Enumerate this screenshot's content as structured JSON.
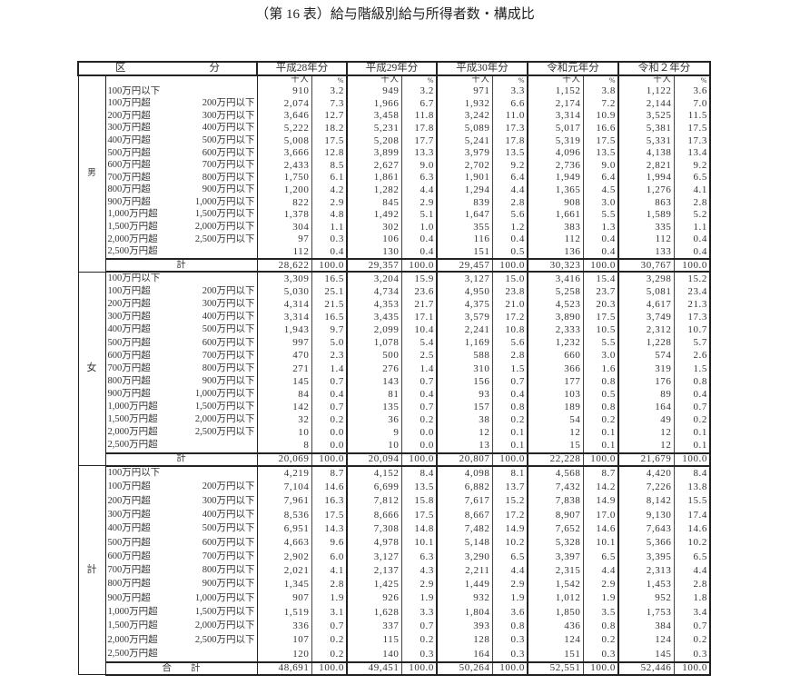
{
  "title": "（第 16 表）給与階級別給与所得者数・構成比",
  "header": {
    "category": "区　　　　　　　　分",
    "years": [
      "平成28年分",
      "平成29年分",
      "平成30年分",
      "令和元年分",
      "令和２年分"
    ],
    "unit_count": "千人",
    "unit_pct": "%"
  },
  "categories": [
    {
      "from": "100万円以下",
      "to": ""
    },
    {
      "from": "100万円超",
      "to": "200万円以下"
    },
    {
      "from": "200万円超",
      "to": "300万円以下"
    },
    {
      "from": "300万円超",
      "to": "400万円以下"
    },
    {
      "from": "400万円超",
      "to": "500万円以下"
    },
    {
      "from": "500万円超",
      "to": "600万円以下"
    },
    {
      "from": "600万円超",
      "to": "700万円以下"
    },
    {
      "from": "700万円超",
      "to": "800万円以下"
    },
    {
      "from": "800万円超",
      "to": "900万円以下"
    },
    {
      "from": "900万円超",
      "to": "1,000万円以下"
    },
    {
      "from": "1,000万円超",
      "to": "1,500万円以下"
    },
    {
      "from": "1,500万円超",
      "to": "2,000万円以下"
    },
    {
      "from": "2,000万円超",
      "to": "2,500万円以下"
    },
    {
      "from": "2,500万円超",
      "to": ""
    }
  ],
  "sections": [
    {
      "label": "男",
      "total_label": "計",
      "rows": [
        [
          [
            "910",
            "3.2"
          ],
          [
            "949",
            "3.2"
          ],
          [
            "971",
            "3.3"
          ],
          [
            "1,152",
            "3.8"
          ],
          [
            "1,122",
            "3.6"
          ]
        ],
        [
          [
            "2,074",
            "7.3"
          ],
          [
            "1,966",
            "6.7"
          ],
          [
            "1,932",
            "6.6"
          ],
          [
            "2,174",
            "7.2"
          ],
          [
            "2,144",
            "7.0"
          ]
        ],
        [
          [
            "3,646",
            "12.7"
          ],
          [
            "3,458",
            "11.8"
          ],
          [
            "3,242",
            "11.0"
          ],
          [
            "3,314",
            "10.9"
          ],
          [
            "3,525",
            "11.5"
          ]
        ],
        [
          [
            "5,222",
            "18.2"
          ],
          [
            "5,231",
            "17.8"
          ],
          [
            "5,089",
            "17.3"
          ],
          [
            "5,017",
            "16.6"
          ],
          [
            "5,381",
            "17.5"
          ]
        ],
        [
          [
            "5,008",
            "17.5"
          ],
          [
            "5,208",
            "17.7"
          ],
          [
            "5,241",
            "17.8"
          ],
          [
            "5,319",
            "17.5"
          ],
          [
            "5,331",
            "17.3"
          ]
        ],
        [
          [
            "3,666",
            "12.8"
          ],
          [
            "3,899",
            "13.3"
          ],
          [
            "3,979",
            "13.5"
          ],
          [
            "4,096",
            "13.5"
          ],
          [
            "4,138",
            "13.4"
          ]
        ],
        [
          [
            "2,433",
            "8.5"
          ],
          [
            "2,627",
            "9.0"
          ],
          [
            "2,702",
            "9.2"
          ],
          [
            "2,736",
            "9.0"
          ],
          [
            "2,821",
            "9.2"
          ]
        ],
        [
          [
            "1,750",
            "6.1"
          ],
          [
            "1,861",
            "6.3"
          ],
          [
            "1,901",
            "6.4"
          ],
          [
            "1,949",
            "6.4"
          ],
          [
            "1,994",
            "6.5"
          ]
        ],
        [
          [
            "1,200",
            "4.2"
          ],
          [
            "1,282",
            "4.4"
          ],
          [
            "1,294",
            "4.4"
          ],
          [
            "1,365",
            "4.5"
          ],
          [
            "1,276",
            "4.1"
          ]
        ],
        [
          [
            "822",
            "2.9"
          ],
          [
            "845",
            "2.9"
          ],
          [
            "839",
            "2.8"
          ],
          [
            "908",
            "3.0"
          ],
          [
            "863",
            "2.8"
          ]
        ],
        [
          [
            "1,378",
            "4.8"
          ],
          [
            "1,492",
            "5.1"
          ],
          [
            "1,647",
            "5.6"
          ],
          [
            "1,661",
            "5.5"
          ],
          [
            "1,589",
            "5.2"
          ]
        ],
        [
          [
            "304",
            "1.1"
          ],
          [
            "302",
            "1.0"
          ],
          [
            "355",
            "1.2"
          ],
          [
            "383",
            "1.3"
          ],
          [
            "335",
            "1.1"
          ]
        ],
        [
          [
            "97",
            "0.3"
          ],
          [
            "106",
            "0.4"
          ],
          [
            "116",
            "0.4"
          ],
          [
            "112",
            "0.4"
          ],
          [
            "112",
            "0.4"
          ]
        ],
        [
          [
            "112",
            "0.4"
          ],
          [
            "130",
            "0.4"
          ],
          [
            "151",
            "0.5"
          ],
          [
            "136",
            "0.4"
          ],
          [
            "133",
            "0.4"
          ]
        ]
      ],
      "total": [
        [
          "28,622",
          "100.0"
        ],
        [
          "29,357",
          "100.0"
        ],
        [
          "29,457",
          "100.0"
        ],
        [
          "30,323",
          "100.0"
        ],
        [
          "30,767",
          "100.0"
        ]
      ]
    },
    {
      "label": "女",
      "total_label": "計",
      "rows": [
        [
          [
            "3,309",
            "16.5"
          ],
          [
            "3,204",
            "15.9"
          ],
          [
            "3,127",
            "15.0"
          ],
          [
            "3,416",
            "15.4"
          ],
          [
            "3,298",
            "15.2"
          ]
        ],
        [
          [
            "5,030",
            "25.1"
          ],
          [
            "4,734",
            "23.6"
          ],
          [
            "4,950",
            "23.8"
          ],
          [
            "5,258",
            "23.7"
          ],
          [
            "5,081",
            "23.4"
          ]
        ],
        [
          [
            "4,314",
            "21.5"
          ],
          [
            "4,353",
            "21.7"
          ],
          [
            "4,375",
            "21.0"
          ],
          [
            "4,523",
            "20.3"
          ],
          [
            "4,617",
            "21.3"
          ]
        ],
        [
          [
            "3,314",
            "16.5"
          ],
          [
            "3,435",
            "17.1"
          ],
          [
            "3,579",
            "17.2"
          ],
          [
            "3,890",
            "17.5"
          ],
          [
            "3,749",
            "17.3"
          ]
        ],
        [
          [
            "1,943",
            "9.7"
          ],
          [
            "2,099",
            "10.4"
          ],
          [
            "2,241",
            "10.8"
          ],
          [
            "2,333",
            "10.5"
          ],
          [
            "2,312",
            "10.7"
          ]
        ],
        [
          [
            "997",
            "5.0"
          ],
          [
            "1,078",
            "5.4"
          ],
          [
            "1,169",
            "5.6"
          ],
          [
            "1,232",
            "5.5"
          ],
          [
            "1,228",
            "5.7"
          ]
        ],
        [
          [
            "470",
            "2.3"
          ],
          [
            "500",
            "2.5"
          ],
          [
            "588",
            "2.8"
          ],
          [
            "660",
            "3.0"
          ],
          [
            "574",
            "2.6"
          ]
        ],
        [
          [
            "271",
            "1.4"
          ],
          [
            "276",
            "1.4"
          ],
          [
            "310",
            "1.5"
          ],
          [
            "366",
            "1.6"
          ],
          [
            "319",
            "1.5"
          ]
        ],
        [
          [
            "145",
            "0.7"
          ],
          [
            "143",
            "0.7"
          ],
          [
            "156",
            "0.7"
          ],
          [
            "177",
            "0.8"
          ],
          [
            "176",
            "0.8"
          ]
        ],
        [
          [
            "84",
            "0.4"
          ],
          [
            "81",
            "0.4"
          ],
          [
            "93",
            "0.4"
          ],
          [
            "103",
            "0.5"
          ],
          [
            "89",
            "0.4"
          ]
        ],
        [
          [
            "142",
            "0.7"
          ],
          [
            "135",
            "0.7"
          ],
          [
            "157",
            "0.8"
          ],
          [
            "189",
            "0.8"
          ],
          [
            "164",
            "0.7"
          ]
        ],
        [
          [
            "32",
            "0.2"
          ],
          [
            "36",
            "0.2"
          ],
          [
            "38",
            "0.2"
          ],
          [
            "54",
            "0.2"
          ],
          [
            "49",
            "0.2"
          ]
        ],
        [
          [
            "10",
            "0.0"
          ],
          [
            "9",
            "0.0"
          ],
          [
            "12",
            "0.1"
          ],
          [
            "12",
            "0.1"
          ],
          [
            "12",
            "0.1"
          ]
        ],
        [
          [
            "8",
            "0.0"
          ],
          [
            "10",
            "0.0"
          ],
          [
            "13",
            "0.1"
          ],
          [
            "15",
            "0.1"
          ],
          [
            "12",
            "0.1"
          ]
        ]
      ],
      "total": [
        [
          "20,069",
          "100.0"
        ],
        [
          "20,094",
          "100.0"
        ],
        [
          "20,807",
          "100.0"
        ],
        [
          "22,228",
          "100.0"
        ],
        [
          "21,679",
          "100.0"
        ]
      ]
    },
    {
      "label": "計",
      "total_label": "合　　計",
      "rows": [
        [
          [
            "4,219",
            "8.7"
          ],
          [
            "4,152",
            "8.4"
          ],
          [
            "4,098",
            "8.1"
          ],
          [
            "4,568",
            "8.7"
          ],
          [
            "4,420",
            "8.4"
          ]
        ],
        [
          [
            "7,104",
            "14.6"
          ],
          [
            "6,699",
            "13.5"
          ],
          [
            "6,882",
            "13.7"
          ],
          [
            "7,432",
            "14.2"
          ],
          [
            "7,226",
            "13.8"
          ]
        ],
        [
          [
            "7,961",
            "16.3"
          ],
          [
            "7,812",
            "15.8"
          ],
          [
            "7,617",
            "15.2"
          ],
          [
            "7,838",
            "14.9"
          ],
          [
            "8,142",
            "15.5"
          ]
        ],
        [
          [
            "8,536",
            "17.5"
          ],
          [
            "8,666",
            "17.5"
          ],
          [
            "8,667",
            "17.2"
          ],
          [
            "8,907",
            "17.0"
          ],
          [
            "9,130",
            "17.4"
          ]
        ],
        [
          [
            "6,951",
            "14.3"
          ],
          [
            "7,308",
            "14.8"
          ],
          [
            "7,482",
            "14.9"
          ],
          [
            "7,652",
            "14.6"
          ],
          [
            "7,643",
            "14.6"
          ]
        ],
        [
          [
            "4,663",
            "9.6"
          ],
          [
            "4,978",
            "10.1"
          ],
          [
            "5,148",
            "10.2"
          ],
          [
            "5,328",
            "10.1"
          ],
          [
            "5,366",
            "10.2"
          ]
        ],
        [
          [
            "2,902",
            "6.0"
          ],
          [
            "3,127",
            "6.3"
          ],
          [
            "3,290",
            "6.5"
          ],
          [
            "3,397",
            "6.5"
          ],
          [
            "3,395",
            "6.5"
          ]
        ],
        [
          [
            "2,021",
            "4.1"
          ],
          [
            "2,137",
            "4.3"
          ],
          [
            "2,211",
            "4.4"
          ],
          [
            "2,315",
            "4.4"
          ],
          [
            "2,313",
            "4.4"
          ]
        ],
        [
          [
            "1,345",
            "2.8"
          ],
          [
            "1,425",
            "2.9"
          ],
          [
            "1,449",
            "2.9"
          ],
          [
            "1,542",
            "2.9"
          ],
          [
            "1,453",
            "2.8"
          ]
        ],
        [
          [
            "907",
            "1.9"
          ],
          [
            "926",
            "1.9"
          ],
          [
            "932",
            "1.9"
          ],
          [
            "1,012",
            "1.9"
          ],
          [
            "952",
            "1.8"
          ]
        ],
        [
          [
            "1,519",
            "3.1"
          ],
          [
            "1,628",
            "3.3"
          ],
          [
            "1,804",
            "3.6"
          ],
          [
            "1,850",
            "3.5"
          ],
          [
            "1,753",
            "3.4"
          ]
        ],
        [
          [
            "336",
            "0.7"
          ],
          [
            "337",
            "0.7"
          ],
          [
            "393",
            "0.8"
          ],
          [
            "436",
            "0.8"
          ],
          [
            "384",
            "0.7"
          ]
        ],
        [
          [
            "107",
            "0.2"
          ],
          [
            "115",
            "0.2"
          ],
          [
            "128",
            "0.3"
          ],
          [
            "124",
            "0.2"
          ],
          [
            "124",
            "0.2"
          ]
        ],
        [
          [
            "120",
            "0.2"
          ],
          [
            "140",
            "0.3"
          ],
          [
            "164",
            "0.3"
          ],
          [
            "151",
            "0.3"
          ],
          [
            "145",
            "0.3"
          ]
        ]
      ],
      "total": [
        [
          "48,691",
          "100.0"
        ],
        [
          "49,451",
          "100.0"
        ],
        [
          "50,264",
          "100.0"
        ],
        [
          "52,551",
          "100.0"
        ],
        [
          "52,446",
          "100.0"
        ]
      ]
    }
  ]
}
